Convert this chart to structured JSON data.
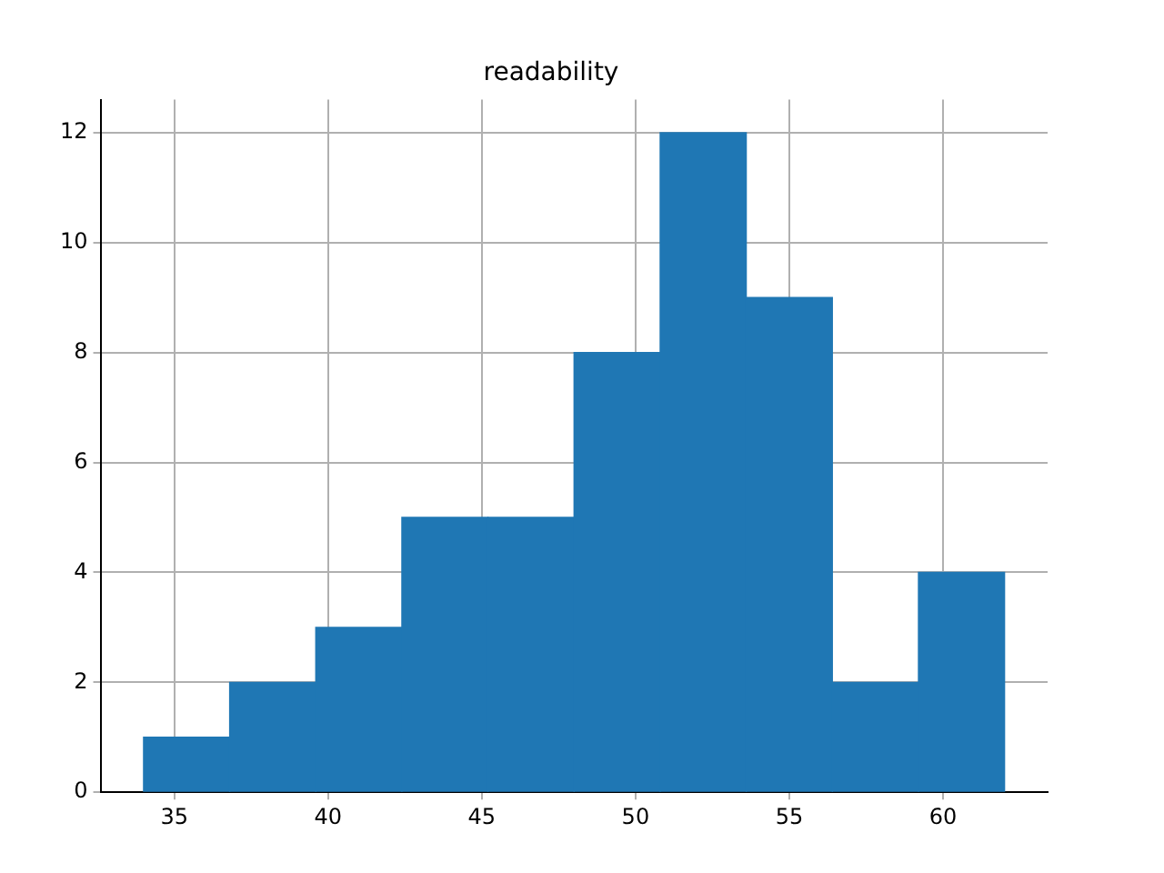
{
  "chart_data": {
    "type": "histogram",
    "title": "readability",
    "bins": [
      34,
      36.8,
      39.6,
      42.4,
      45.2,
      48,
      50.8,
      53.6,
      56.4,
      59.2,
      62
    ],
    "values": [
      1,
      2,
      3,
      5,
      5,
      8,
      12,
      9,
      2,
      4
    ],
    "color": "#1f77b4",
    "xlim": [
      32.6,
      63.4
    ],
    "xticks": [
      35,
      40,
      45,
      50,
      55,
      60
    ],
    "ylim": [
      0,
      12.6
    ],
    "yticks": [
      0,
      2,
      4,
      6,
      8,
      10,
      12
    ],
    "grid": true
  }
}
